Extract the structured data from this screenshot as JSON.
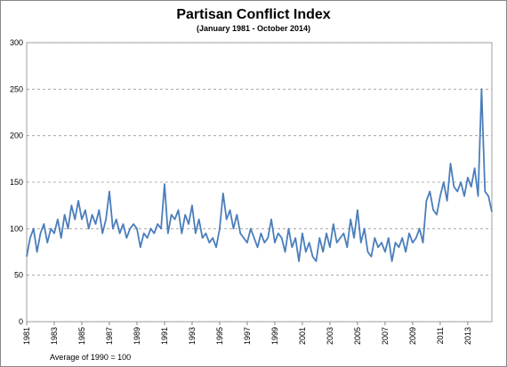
{
  "chart_data": {
    "type": "line",
    "title": "Partisan Conflict Index",
    "subtitle": "(January 1981 - October 2014)",
    "annotation": "Average of 1990 = 100",
    "xlim": [
      1981,
      2014.75
    ],
    "xticks": [
      1981,
      1983,
      1985,
      1987,
      1989,
      1991,
      1993,
      1995,
      1997,
      1999,
      2001,
      2003,
      2005,
      2007,
      2009,
      2011,
      2013
    ],
    "ylim": [
      0,
      300
    ],
    "yticks": [
      0,
      50,
      100,
      150,
      200,
      250,
      300
    ],
    "grid": true,
    "x": [
      1981,
      1981.25,
      1981.5,
      1981.75,
      1982,
      1982.25,
      1982.5,
      1982.75,
      1983,
      1983.25,
      1983.5,
      1983.75,
      1984,
      1984.25,
      1984.5,
      1984.75,
      1985,
      1985.25,
      1985.5,
      1985.75,
      1986,
      1986.25,
      1986.5,
      1986.75,
      1987,
      1987.25,
      1987.5,
      1987.75,
      1988,
      1988.25,
      1988.5,
      1988.75,
      1989,
      1989.25,
      1989.5,
      1989.75,
      1990,
      1990.25,
      1990.5,
      1990.75,
      1991,
      1991.25,
      1991.5,
      1991.75,
      1992,
      1992.25,
      1992.5,
      1992.75,
      1993,
      1993.25,
      1993.5,
      1993.75,
      1994,
      1994.25,
      1994.5,
      1994.75,
      1995,
      1995.25,
      1995.5,
      1995.75,
      1996,
      1996.25,
      1996.5,
      1996.75,
      1997,
      1997.25,
      1997.5,
      1997.75,
      1998,
      1998.25,
      1998.5,
      1998.75,
      1999,
      1999.25,
      1999.5,
      1999.75,
      2000,
      2000.25,
      2000.5,
      2000.75,
      2001,
      2001.25,
      2001.5,
      2001.75,
      2002,
      2002.25,
      2002.5,
      2002.75,
      2003,
      2003.25,
      2003.5,
      2003.75,
      2004,
      2004.25,
      2004.5,
      2004.75,
      2005,
      2005.25,
      2005.5,
      2005.75,
      2006,
      2006.25,
      2006.5,
      2006.75,
      2007,
      2007.25,
      2007.5,
      2007.75,
      2008,
      2008.25,
      2008.5,
      2008.75,
      2009,
      2009.25,
      2009.5,
      2009.75,
      2010,
      2010.25,
      2010.5,
      2010.75,
      2011,
      2011.25,
      2011.5,
      2011.75,
      2012,
      2012.25,
      2012.5,
      2012.75,
      2013,
      2013.25,
      2013.5,
      2013.75,
      2014,
      2014.25,
      2014.5,
      2014.75
    ],
    "series": [
      {
        "color": "#4a7ebb",
        "values": [
          70,
          90,
          100,
          75,
          95,
          105,
          85,
          100,
          95,
          110,
          90,
          115,
          100,
          125,
          110,
          130,
          110,
          120,
          100,
          115,
          105,
          120,
          95,
          110,
          140,
          100,
          110,
          95,
          105,
          90,
          100,
          105,
          100,
          80,
          95,
          90,
          100,
          95,
          105,
          100,
          148,
          95,
          115,
          110,
          120,
          95,
          115,
          105,
          125,
          95,
          110,
          90,
          95,
          85,
          90,
          80,
          100,
          138,
          110,
          120,
          100,
          115,
          95,
          90,
          85,
          100,
          90,
          80,
          95,
          85,
          90,
          110,
          85,
          95,
          90,
          75,
          100,
          80,
          90,
          65,
          95,
          75,
          85,
          70,
          65,
          90,
          75,
          95,
          80,
          105,
          85,
          90,
          95,
          80,
          110,
          90,
          120,
          85,
          100,
          75,
          70,
          90,
          80,
          85,
          75,
          90,
          65,
          85,
          80,
          90,
          75,
          95,
          85,
          90,
          100,
          85,
          130,
          140,
          120,
          115,
          135,
          150,
          130,
          170,
          145,
          140,
          150,
          135,
          155,
          145,
          165,
          135,
          250,
          140,
          135,
          118
        ]
      }
    ]
  }
}
